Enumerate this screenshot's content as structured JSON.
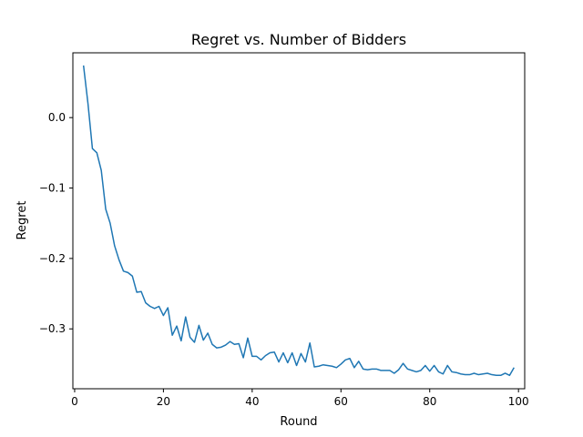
{
  "chart_data": {
    "type": "line",
    "title": "Regret vs. Number of Bidders",
    "xlabel": "Round",
    "ylabel": "Regret",
    "xlim": [
      -0.4,
      101.4
    ],
    "ylim": [
      -0.385,
      0.092
    ],
    "grid": false,
    "xticks": [
      0,
      20,
      40,
      60,
      80,
      100
    ],
    "yticks": [
      0.0,
      -0.1,
      -0.2,
      -0.3
    ],
    "ytick_labels": [
      "0.0",
      "−0.1",
      "−0.2",
      "−0.3"
    ],
    "series": [
      {
        "color": "#1f77b4",
        "x": [
          2,
          3,
          4,
          5,
          6,
          7,
          8,
          9,
          10,
          11,
          12,
          13,
          14,
          15,
          16,
          17,
          18,
          19,
          20,
          21,
          22,
          23,
          24,
          25,
          26,
          27,
          28,
          29,
          30,
          31,
          32,
          33,
          34,
          35,
          36,
          37,
          38,
          39,
          40,
          41,
          42,
          43,
          44,
          45,
          46,
          47,
          48,
          49,
          50,
          51,
          52,
          53,
          54,
          55,
          56,
          57,
          58,
          59,
          60,
          61,
          62,
          63,
          64,
          65,
          66,
          67,
          68,
          69,
          70,
          71,
          72,
          73,
          74,
          75,
          76,
          77,
          78,
          79,
          80,
          81,
          82,
          83,
          84,
          85,
          86,
          87,
          88,
          89,
          90,
          91,
          92,
          93,
          94,
          95,
          96,
          97,
          98,
          99
        ],
        "y": [
          0.074,
          0.02,
          -0.044,
          -0.05,
          -0.075,
          -0.13,
          -0.15,
          -0.182,
          -0.202,
          -0.218,
          -0.22,
          -0.225,
          -0.248,
          -0.247,
          -0.263,
          -0.268,
          -0.271,
          -0.268,
          -0.281,
          -0.27,
          -0.309,
          -0.296,
          -0.317,
          -0.283,
          -0.312,
          -0.319,
          -0.295,
          -0.316,
          -0.306,
          -0.322,
          -0.327,
          -0.326,
          -0.323,
          -0.318,
          -0.322,
          -0.321,
          -0.341,
          -0.313,
          -0.339,
          -0.339,
          -0.344,
          -0.338,
          -0.334,
          -0.333,
          -0.347,
          -0.334,
          -0.348,
          -0.334,
          -0.352,
          -0.335,
          -0.347,
          -0.32,
          -0.354,
          -0.353,
          -0.351,
          -0.352,
          -0.353,
          -0.355,
          -0.35,
          -0.344,
          -0.342,
          -0.355,
          -0.346,
          -0.357,
          -0.358,
          -0.357,
          -0.357,
          -0.359,
          -0.359,
          -0.359,
          -0.363,
          -0.358,
          -0.349,
          -0.357,
          -0.359,
          -0.361,
          -0.359,
          -0.352,
          -0.36,
          -0.352,
          -0.361,
          -0.364,
          -0.352,
          -0.361,
          -0.362,
          -0.364,
          -0.365,
          -0.365,
          -0.363,
          -0.365,
          -0.364,
          -0.363,
          -0.365,
          -0.366,
          -0.366,
          -0.363,
          -0.366,
          -0.355
        ]
      }
    ]
  }
}
